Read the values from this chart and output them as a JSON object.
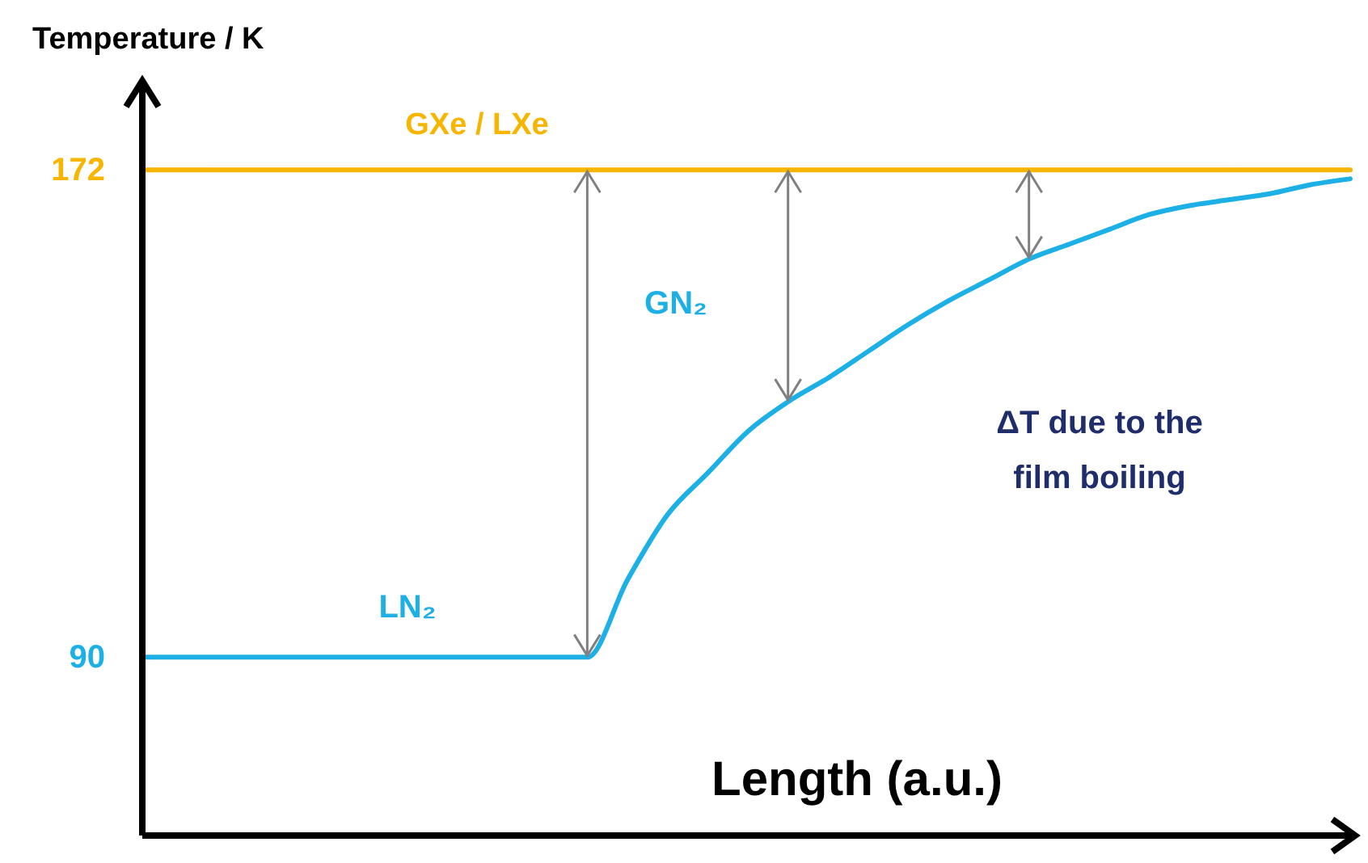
{
  "chart_data": {
    "type": "line",
    "ylabel": "Temperature / K",
    "xlabel": "Length (a.u.)",
    "categories": [
      null,
      null,
      null,
      null,
      null,
      null,
      null,
      null,
      null,
      null,
      null,
      null,
      null,
      null,
      null,
      null,
      null,
      null,
      null,
      null,
      null,
      null,
      null,
      null,
      null,
      null,
      null,
      null,
      null,
      null,
      null
    ],
    "ylim": [
      60,
      187
    ],
    "yticks": [
      90,
      172
    ],
    "tick_labels": "y",
    "series": [
      {
        "name": "GXe / LXe",
        "color": "#f7b500",
        "values": [
          172,
          172,
          172,
          172,
          172,
          172,
          172,
          172,
          172,
          172,
          172,
          172,
          172,
          172,
          172,
          172,
          172,
          172,
          172,
          172,
          172,
          172,
          172,
          172,
          172,
          172,
          172,
          172,
          172,
          172,
          172
        ]
      },
      {
        "color": "#1cb0e6",
        "values": [
          90,
          90,
          90,
          90,
          90,
          90,
          90,
          90,
          90,
          90,
          90,
          90,
          103,
          114,
          121,
          128,
          133,
          137,
          141.5,
          146,
          150,
          153.5,
          157,
          159.5,
          162,
          164.5,
          166,
          167,
          168,
          169.5,
          170.5
        ]
      }
    ],
    "annotations": [
      "GN₂",
      "LN₂",
      "ΔT due to the film boiling"
    ]
  }
}
